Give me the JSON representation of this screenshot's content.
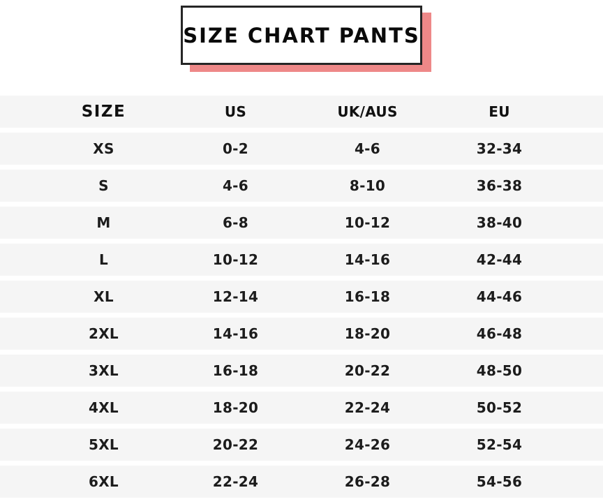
{
  "title": "SIZE CHART PANTS",
  "colors": {
    "accent_shadow": "#ee8888",
    "row_band": "#f5f5f5",
    "box_border": "#262626",
    "text": "#1c1c1c"
  },
  "table": {
    "columns": [
      "SIZE",
      "US",
      "UK/AUS",
      "EU"
    ],
    "rows": [
      {
        "size": "XS",
        "us": "0-2",
        "uk_aus": "4-6",
        "eu": "32-34"
      },
      {
        "size": "S",
        "us": "4-6",
        "uk_aus": "8-10",
        "eu": "36-38"
      },
      {
        "size": "M",
        "us": "6-8",
        "uk_aus": "10-12",
        "eu": "38-40"
      },
      {
        "size": "L",
        "us": "10-12",
        "uk_aus": "14-16",
        "eu": "42-44"
      },
      {
        "size": "XL",
        "us": "12-14",
        "uk_aus": "16-18",
        "eu": "44-46"
      },
      {
        "size": "2XL",
        "us": "14-16",
        "uk_aus": "18-20",
        "eu": "46-48"
      },
      {
        "size": "3XL",
        "us": "16-18",
        "uk_aus": "20-22",
        "eu": "48-50"
      },
      {
        "size": "4XL",
        "us": "18-20",
        "uk_aus": "22-24",
        "eu": "50-52"
      },
      {
        "size": "5XL",
        "us": "20-22",
        "uk_aus": "24-26",
        "eu": "52-54"
      },
      {
        "size": "6XL",
        "us": "22-24",
        "uk_aus": "26-28",
        "eu": "54-56"
      }
    ]
  },
  "chart_data": {
    "type": "table",
    "title": "SIZE CHART PANTS",
    "columns": [
      "SIZE",
      "US",
      "UK/AUS",
      "EU"
    ],
    "rows": [
      [
        "XS",
        "0-2",
        "4-6",
        "32-34"
      ],
      [
        "S",
        "4-6",
        "8-10",
        "36-38"
      ],
      [
        "M",
        "6-8",
        "10-12",
        "38-40"
      ],
      [
        "L",
        "10-12",
        "14-16",
        "42-44"
      ],
      [
        "XL",
        "12-14",
        "16-18",
        "44-46"
      ],
      [
        "2XL",
        "14-16",
        "18-20",
        "46-48"
      ],
      [
        "3XL",
        "16-18",
        "20-22",
        "48-50"
      ],
      [
        "4XL",
        "18-20",
        "22-24",
        "50-52"
      ],
      [
        "5XL",
        "20-22",
        "24-26",
        "52-54"
      ],
      [
        "6XL",
        "22-24",
        "26-28",
        "54-56"
      ]
    ]
  }
}
